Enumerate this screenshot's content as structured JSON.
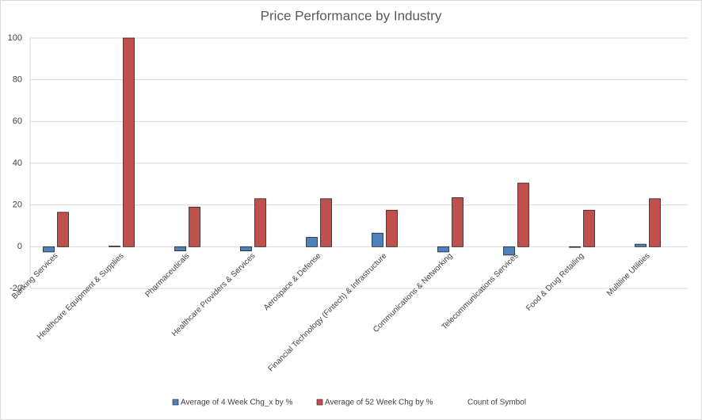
{
  "chart_data": {
    "type": "bar",
    "title": "Price Performance by Industry",
    "categories": [
      "Banking Services",
      "Healthcare Equipment & Supplies",
      "Pharmaceuticals",
      "Healthcare Providers & Services",
      "Aerospace & Defense",
      "Financial Technology (Fintech) & Infrastructure",
      "Communications & Networking",
      "Telecommunications Services",
      "Food & Drug Retailing",
      "Multiline Utilities"
    ],
    "series": [
      {
        "name": "Average of 4 Week Chg_x by %",
        "color": "#4f81bd",
        "values": [
          -2.5,
          0.3,
          -2,
          -2,
          4.5,
          6.5,
          -2.5,
          -4,
          -0.3,
          1.2
        ]
      },
      {
        "name": "Average of 52 Week Chg by %",
        "color": "#c0504d",
        "values": [
          16.5,
          100,
          19,
          23,
          23,
          17.5,
          23.5,
          30.5,
          17.5,
          23
        ]
      },
      {
        "name": "Count of Symbol",
        "values": [
          null,
          null,
          null,
          null,
          null,
          null,
          null,
          null,
          null,
          null
        ]
      }
    ],
    "ylim": [
      -20,
      100
    ],
    "yticks": [
      -20,
      0,
      20,
      40,
      60,
      80,
      100
    ],
    "grid": true,
    "legend": "bottom"
  }
}
